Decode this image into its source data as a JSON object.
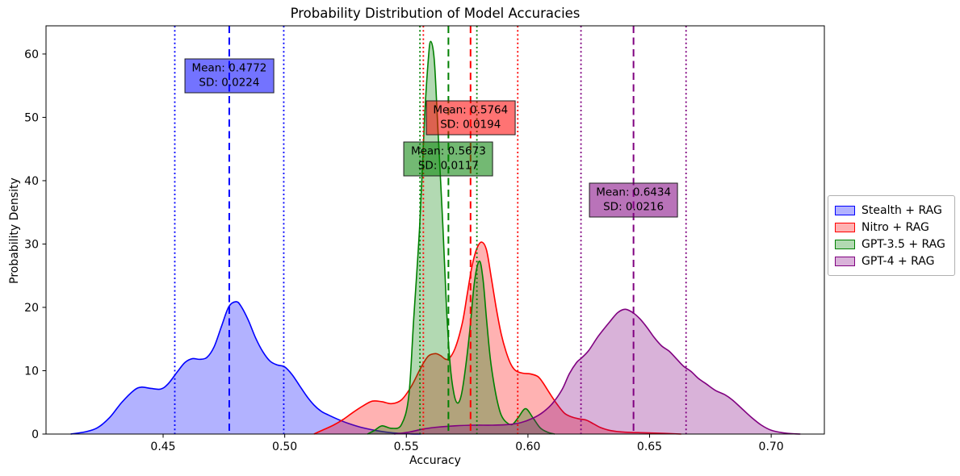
{
  "chart_data": {
    "type": "area",
    "title": "Probability Distribution of Model Accuracies",
    "xlabel": "Accuracy",
    "ylabel": "Probability Density",
    "xlim": [
      0.40186,
      0.72186
    ],
    "ylim": [
      0,
      64.45
    ],
    "xticks": [
      0.45,
      0.5,
      0.55,
      0.6,
      0.65,
      0.7
    ],
    "xtick_labels": [
      "0.45",
      "0.50",
      "0.55",
      "0.60",
      "0.65",
      "0.70"
    ],
    "yticks": [
      0,
      10,
      20,
      30,
      40,
      50,
      60
    ],
    "ytick_labels": [
      "0",
      "10",
      "20",
      "30",
      "40",
      "50",
      "60"
    ],
    "grid": false,
    "legend_position": "right-outside",
    "fill_alpha": 0.3,
    "box_alpha": 0.55,
    "series": [
      {
        "name": "Stealth + RAG",
        "color": "#0000ff",
        "mean": 0.4772,
        "sd": 0.0224,
        "mean_label": "Mean: 0.4772",
        "sd_label": "SD: 0.0224",
        "annotation_y": 56.6,
        "points": [
          [
            0.412,
            0
          ],
          [
            0.418,
            0.35
          ],
          [
            0.423,
            1.0
          ],
          [
            0.428,
            2.6
          ],
          [
            0.433,
            5.0
          ],
          [
            0.438,
            6.9
          ],
          [
            0.441,
            7.4
          ],
          [
            0.445,
            7.2
          ],
          [
            0.449,
            7.1
          ],
          [
            0.452,
            7.9
          ],
          [
            0.456,
            9.9
          ],
          [
            0.459,
            11.3
          ],
          [
            0.462,
            11.9
          ],
          [
            0.465,
            11.8
          ],
          [
            0.468,
            12.1
          ],
          [
            0.471,
            13.8
          ],
          [
            0.474,
            17.0
          ],
          [
            0.477,
            20.1
          ],
          [
            0.48,
            20.9
          ],
          [
            0.482,
            20.2
          ],
          [
            0.485,
            18.0
          ],
          [
            0.488,
            15.2
          ],
          [
            0.491,
            13.0
          ],
          [
            0.494,
            11.5
          ],
          [
            0.497,
            10.9
          ],
          [
            0.5,
            10.6
          ],
          [
            0.503,
            9.4
          ],
          [
            0.506,
            7.7
          ],
          [
            0.509,
            6.0
          ],
          [
            0.512,
            4.6
          ],
          [
            0.515,
            3.6
          ],
          [
            0.518,
            3.0
          ],
          [
            0.522,
            2.3
          ],
          [
            0.526,
            1.7
          ],
          [
            0.531,
            1.1
          ],
          [
            0.537,
            0.6
          ],
          [
            0.543,
            0.25
          ],
          [
            0.55,
            0.05
          ],
          [
            0.556,
            0
          ]
        ]
      },
      {
        "name": "Nitro + RAG",
        "color": "#ff0000",
        "mean": 0.5764,
        "sd": 0.0194,
        "mean_label": "Mean: 0.5764",
        "sd_label": "SD: 0.0194",
        "annotation_y": 49.9,
        "points": [
          [
            0.512,
            0
          ],
          [
            0.516,
            0.7
          ],
          [
            0.52,
            1.4
          ],
          [
            0.524,
            2.3
          ],
          [
            0.528,
            3.4
          ],
          [
            0.532,
            4.4
          ],
          [
            0.536,
            5.2
          ],
          [
            0.54,
            5.1
          ],
          [
            0.544,
            4.8
          ],
          [
            0.548,
            5.4
          ],
          [
            0.552,
            7.5
          ],
          [
            0.556,
            10.5
          ],
          [
            0.559,
            12.3
          ],
          [
            0.562,
            12.7
          ],
          [
            0.564,
            12.4
          ],
          [
            0.567,
            11.8
          ],
          [
            0.57,
            13.5
          ],
          [
            0.573,
            17.5
          ],
          [
            0.575,
            22.0
          ],
          [
            0.577,
            26.5
          ],
          [
            0.579,
            29.3
          ],
          [
            0.581,
            30.3
          ],
          [
            0.583,
            29.0
          ],
          [
            0.585,
            24.5
          ],
          [
            0.587,
            19.8
          ],
          [
            0.589,
            15.8
          ],
          [
            0.591,
            13.0
          ],
          [
            0.593,
            11.0
          ],
          [
            0.595,
            10.0
          ],
          [
            0.598,
            9.6
          ],
          [
            0.601,
            9.5
          ],
          [
            0.604,
            9.1
          ],
          [
            0.606,
            8.2
          ],
          [
            0.609,
            6.4
          ],
          [
            0.612,
            4.7
          ],
          [
            0.615,
            3.3
          ],
          [
            0.618,
            2.7
          ],
          [
            0.621,
            2.4
          ],
          [
            0.624,
            2.2
          ],
          [
            0.627,
            1.6
          ],
          [
            0.63,
            1.0
          ],
          [
            0.634,
            0.55
          ],
          [
            0.64,
            0.3
          ],
          [
            0.648,
            0.2
          ],
          [
            0.656,
            0.1
          ],
          [
            0.663,
            0
          ]
        ]
      },
      {
        "name": "GPT-3.5 + RAG",
        "color": "#008000",
        "mean": 0.5673,
        "sd": 0.0117,
        "mean_label": "Mean: 0.5673",
        "sd_label": "SD: 0.0117",
        "annotation_y": 43.4,
        "points": [
          [
            0.534,
            0
          ],
          [
            0.537,
            0.6
          ],
          [
            0.54,
            1.3
          ],
          [
            0.544,
            0.9
          ],
          [
            0.548,
            1.5
          ],
          [
            0.551,
            6.0
          ],
          [
            0.553,
            18.0
          ],
          [
            0.5555,
            33.0
          ],
          [
            0.5575,
            50.0
          ],
          [
            0.559,
            59.0
          ],
          [
            0.56,
            62.0
          ],
          [
            0.5615,
            59.0
          ],
          [
            0.563,
            48.0
          ],
          [
            0.565,
            33.0
          ],
          [
            0.5665,
            20.0
          ],
          [
            0.568,
            11.0
          ],
          [
            0.5695,
            6.5
          ],
          [
            0.571,
            4.9
          ],
          [
            0.5725,
            6.0
          ],
          [
            0.574,
            9.5
          ],
          [
            0.576,
            16.0
          ],
          [
            0.578,
            24.0
          ],
          [
            0.58,
            27.3
          ],
          [
            0.5815,
            24.5
          ],
          [
            0.583,
            18.0
          ],
          [
            0.5845,
            12.0
          ],
          [
            0.586,
            8.0
          ],
          [
            0.5875,
            5.0
          ],
          [
            0.589,
            3.0
          ],
          [
            0.591,
            1.9
          ],
          [
            0.5935,
            1.5
          ],
          [
            0.596,
            2.6
          ],
          [
            0.599,
            4.0
          ],
          [
            0.602,
            2.6
          ],
          [
            0.605,
            1.0
          ],
          [
            0.608,
            0.3
          ],
          [
            0.611,
            0
          ]
        ]
      },
      {
        "name": "GPT-4 + RAG",
        "color": "#800080",
        "mean": 0.6434,
        "sd": 0.0216,
        "mean_label": "Mean: 0.6434",
        "sd_label": "SD: 0.0216",
        "annotation_y": 37.0,
        "points": [
          [
            0.545,
            0
          ],
          [
            0.551,
            0.3
          ],
          [
            0.557,
            0.8
          ],
          [
            0.563,
            1.1
          ],
          [
            0.57,
            1.3
          ],
          [
            0.578,
            1.4
          ],
          [
            0.585,
            1.4
          ],
          [
            0.592,
            1.5
          ],
          [
            0.597,
            1.8
          ],
          [
            0.602,
            2.5
          ],
          [
            0.606,
            3.4
          ],
          [
            0.61,
            4.8
          ],
          [
            0.614,
            7.0
          ],
          [
            0.617,
            9.5
          ],
          [
            0.62,
            11.3
          ],
          [
            0.622,
            12.0
          ],
          [
            0.625,
            13.2
          ],
          [
            0.629,
            15.5
          ],
          [
            0.634,
            17.9
          ],
          [
            0.637,
            19.2
          ],
          [
            0.64,
            19.7
          ],
          [
            0.643,
            19.2
          ],
          [
            0.646,
            18.2
          ],
          [
            0.649,
            16.8
          ],
          [
            0.652,
            15.2
          ],
          [
            0.655,
            13.9
          ],
          [
            0.658,
            13.1
          ],
          [
            0.661,
            11.9
          ],
          [
            0.664,
            10.7
          ],
          [
            0.667,
            9.9
          ],
          [
            0.67,
            8.8
          ],
          [
            0.673,
            8.0
          ],
          [
            0.677,
            6.9
          ],
          [
            0.681,
            6.2
          ],
          [
            0.684,
            5.4
          ],
          [
            0.688,
            4.0
          ],
          [
            0.692,
            2.6
          ],
          [
            0.696,
            1.4
          ],
          [
            0.7,
            0.6
          ],
          [
            0.704,
            0.25
          ],
          [
            0.708,
            0.07
          ],
          [
            0.712,
            0
          ]
        ]
      }
    ]
  }
}
